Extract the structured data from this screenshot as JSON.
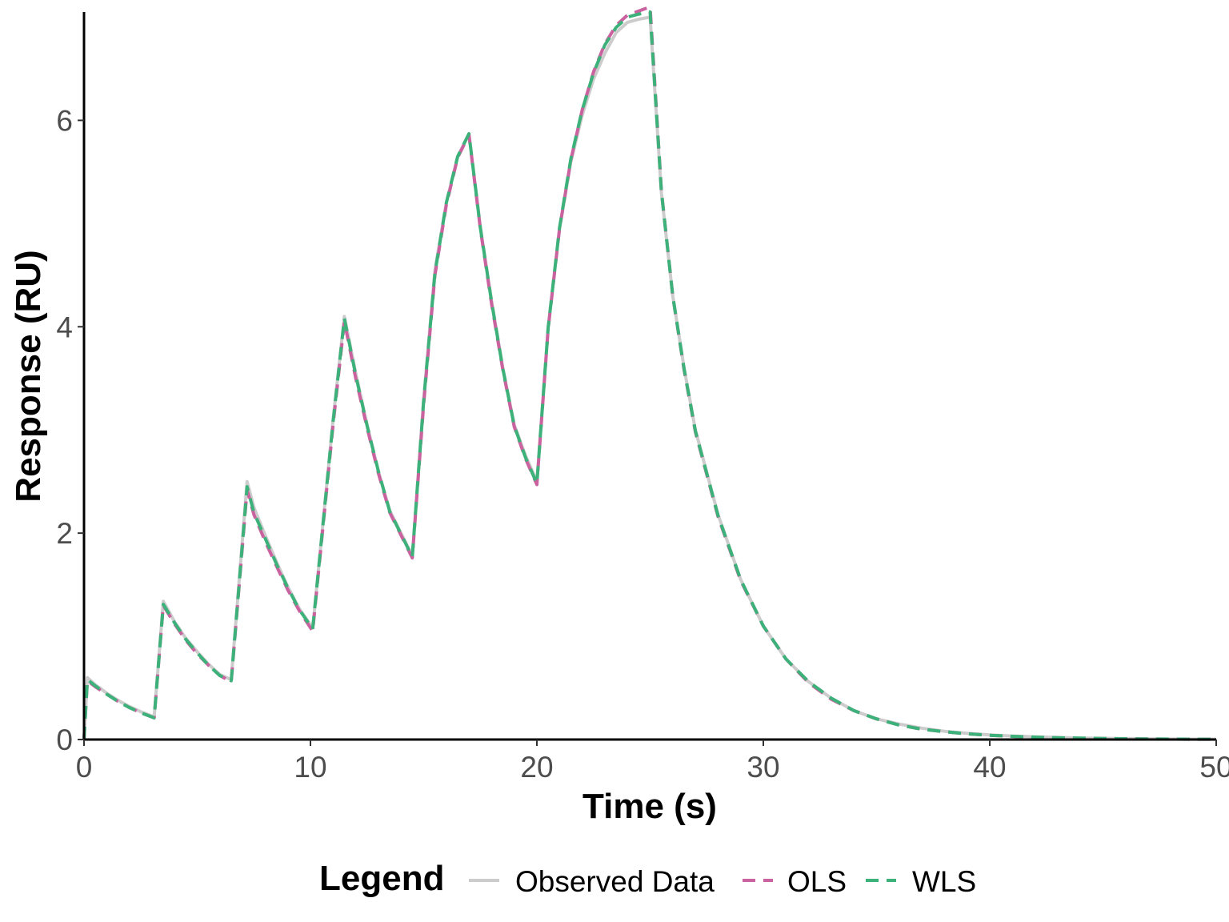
{
  "chart_data": {
    "type": "line",
    "xlabel": "Time (s)",
    "ylabel": "Response (RU)",
    "xlim": [
      0,
      50
    ],
    "ylim": [
      0,
      7.05
    ],
    "x_ticks": [
      0,
      10,
      20,
      30,
      40,
      50
    ],
    "x_tick_labels": [
      "0",
      "10",
      "20",
      "30",
      "40",
      "50"
    ],
    "y_ticks": [
      0,
      2,
      4,
      6
    ],
    "y_tick_labels": [
      "0",
      "2",
      "4",
      "6"
    ],
    "grid": false,
    "legend": {
      "title": "Legend",
      "placement": "bottom",
      "entries": [
        "Observed Data",
        "OLS",
        "WLS"
      ]
    },
    "series": [
      {
        "name": "Observed Data",
        "color": "#cccccc",
        "style": "solid",
        "x": [
          0,
          0.15,
          0.5,
          1,
          1.5,
          2,
          2.5,
          3.1,
          3.5,
          4,
          4.5,
          5,
          5.5,
          6,
          6.5,
          7.2,
          7.5,
          8,
          8.5,
          9,
          9.5,
          10.1,
          11,
          11.5,
          12,
          12.5,
          13,
          13.5,
          14,
          14.5,
          15,
          15.5,
          16,
          16.5,
          17,
          17.5,
          18,
          18.5,
          19,
          19.5,
          20,
          20.5,
          21,
          21.5,
          22,
          22.5,
          23,
          23.5,
          24,
          24.5,
          25,
          25.5,
          26,
          26.5,
          27,
          28,
          29,
          30,
          31,
          32,
          33,
          34,
          35,
          36,
          37,
          38,
          39,
          40,
          41,
          42,
          43,
          44,
          45,
          46,
          47,
          48,
          49,
          50
        ],
        "y": [
          0,
          0.6,
          0.53,
          0.45,
          0.38,
          0.32,
          0.27,
          0.22,
          1.34,
          1.14,
          0.98,
          0.85,
          0.73,
          0.63,
          0.58,
          2.5,
          2.25,
          1.98,
          1.72,
          1.48,
          1.27,
          1.08,
          3.1,
          4.1,
          3.55,
          3.05,
          2.6,
          2.22,
          2.0,
          1.78,
          3.3,
          4.55,
          5.2,
          5.65,
          5.87,
          4.97,
          4.25,
          3.6,
          3.05,
          2.75,
          2.5,
          4.0,
          4.95,
          5.6,
          6.05,
          6.4,
          6.65,
          6.85,
          6.95,
          6.98,
          7.0,
          5.3,
          4.3,
          3.6,
          3.0,
          2.18,
          1.55,
          1.1,
          0.78,
          0.56,
          0.4,
          0.28,
          0.2,
          0.15,
          0.11,
          0.08,
          0.06,
          0.045,
          0.034,
          0.026,
          0.02,
          0.015,
          0.012,
          0.009,
          0.007,
          0.005,
          0.004,
          0.003
        ]
      },
      {
        "name": "OLS",
        "color": "#c9629f",
        "style": "dashed",
        "x": [
          0,
          0.15,
          0.5,
          1,
          1.5,
          2,
          2.5,
          3.1,
          3.5,
          4,
          4.5,
          5,
          5.5,
          6,
          6.5,
          7.2,
          7.5,
          8,
          8.5,
          9,
          9.5,
          10.1,
          11,
          11.5,
          12,
          12.5,
          13,
          13.5,
          14,
          14.5,
          15,
          15.5,
          16,
          16.5,
          17,
          17.5,
          18,
          18.5,
          19,
          19.5,
          20,
          20.5,
          21,
          21.5,
          22,
          22.5,
          23,
          23.5,
          24,
          24.5,
          25,
          25.5,
          26,
          26.5,
          27,
          28,
          29,
          30,
          31,
          32,
          33,
          34,
          35,
          36,
          37,
          38,
          39,
          40,
          41,
          42,
          43,
          44,
          45,
          46,
          47,
          48,
          49,
          50
        ],
        "y": [
          0,
          0.57,
          0.51,
          0.44,
          0.37,
          0.31,
          0.26,
          0.21,
          1.3,
          1.12,
          0.96,
          0.83,
          0.72,
          0.62,
          0.56,
          2.42,
          2.18,
          1.92,
          1.68,
          1.45,
          1.25,
          1.05,
          3.05,
          4.05,
          3.5,
          3.02,
          2.58,
          2.2,
          1.98,
          1.76,
          3.25,
          4.5,
          5.18,
          5.64,
          5.86,
          4.95,
          4.22,
          3.58,
          3.03,
          2.72,
          2.47,
          3.98,
          4.95,
          5.62,
          6.1,
          6.47,
          6.74,
          6.92,
          7.02,
          7.06,
          7.1,
          5.32,
          4.3,
          3.58,
          2.98,
          2.16,
          1.54,
          1.1,
          0.78,
          0.55,
          0.39,
          0.28,
          0.2,
          0.14,
          0.1,
          0.075,
          0.055,
          0.04,
          0.03,
          0.022,
          0.016,
          0.012,
          0.009,
          0.007,
          0.005,
          0.004,
          0.003,
          0.002
        ]
      },
      {
        "name": "WLS",
        "color": "#3db17a",
        "style": "dashed",
        "x": [
          0,
          0.15,
          0.5,
          1,
          1.5,
          2,
          2.5,
          3.1,
          3.5,
          4,
          4.5,
          5,
          5.5,
          6,
          6.5,
          7.2,
          7.5,
          8,
          8.5,
          9,
          9.5,
          10.1,
          11,
          11.5,
          12,
          12.5,
          13,
          13.5,
          14,
          14.5,
          15,
          15.5,
          16,
          16.5,
          17,
          17.5,
          18,
          18.5,
          19,
          19.5,
          20,
          20.5,
          21,
          21.5,
          22,
          22.5,
          23,
          23.5,
          24,
          24.5,
          25,
          25.5,
          26,
          26.5,
          27,
          28,
          29,
          30,
          31,
          32,
          33,
          34,
          35,
          36,
          37,
          38,
          39,
          40,
          41,
          42,
          43,
          44,
          45,
          46,
          47,
          48,
          49,
          50
        ],
        "y": [
          0,
          0.58,
          0.52,
          0.44,
          0.37,
          0.31,
          0.26,
          0.21,
          1.31,
          1.13,
          0.97,
          0.84,
          0.72,
          0.62,
          0.57,
          2.45,
          2.2,
          1.95,
          1.7,
          1.47,
          1.26,
          1.07,
          3.08,
          4.08,
          3.53,
          3.04,
          2.6,
          2.21,
          1.99,
          1.77,
          3.28,
          4.52,
          5.2,
          5.65,
          5.87,
          4.96,
          4.24,
          3.59,
          3.04,
          2.73,
          2.48,
          3.99,
          4.96,
          5.63,
          6.1,
          6.46,
          6.73,
          6.9,
          7.0,
          7.03,
          7.05,
          5.31,
          4.3,
          3.59,
          2.99,
          2.17,
          1.55,
          1.1,
          0.78,
          0.56,
          0.4,
          0.28,
          0.2,
          0.14,
          0.1,
          0.076,
          0.056,
          0.041,
          0.031,
          0.023,
          0.017,
          0.013,
          0.01,
          0.007,
          0.005,
          0.004,
          0.003,
          0.002
        ]
      }
    ]
  }
}
